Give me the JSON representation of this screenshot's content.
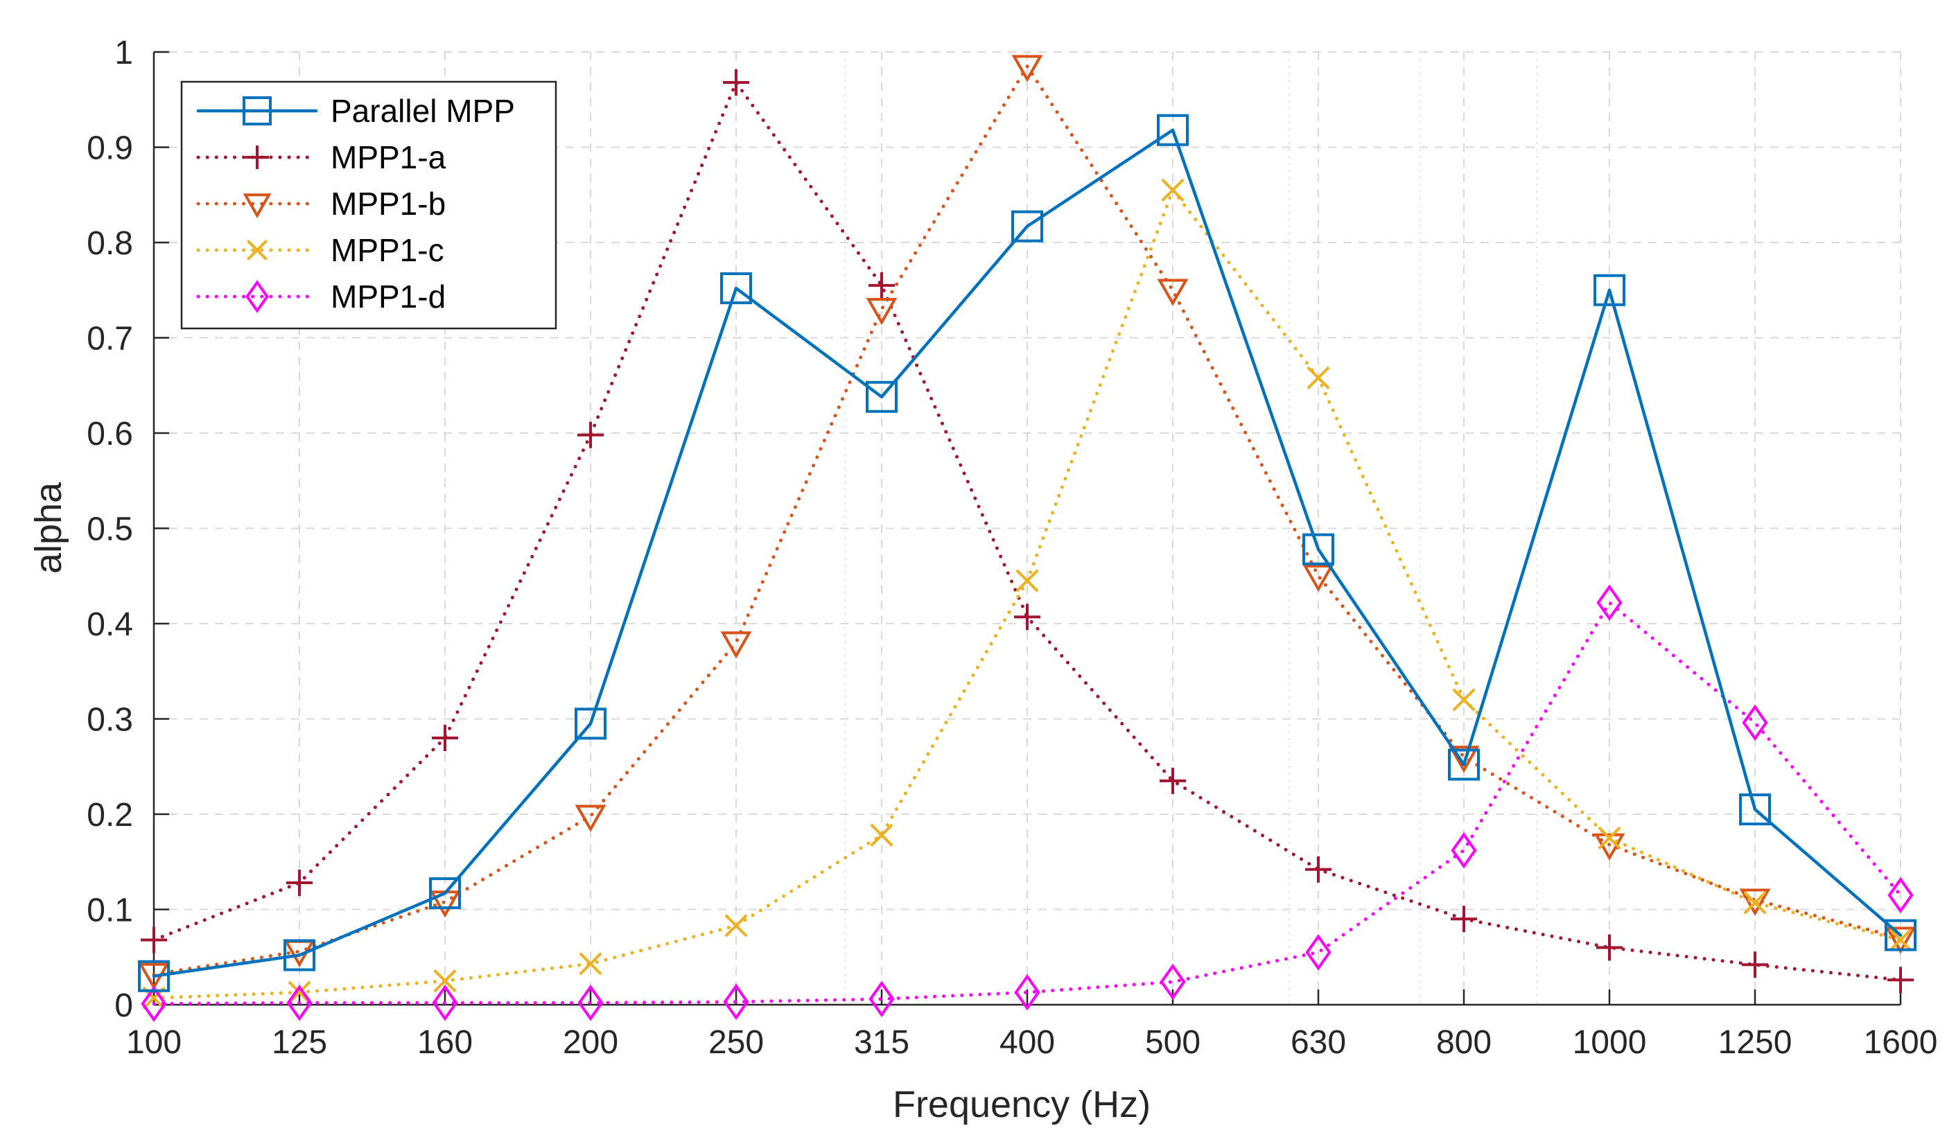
{
  "chart_data": {
    "type": "line",
    "title": "",
    "xlabel": "Frequency (Hz)",
    "ylabel": "alpha",
    "categories": [
      "100",
      "125",
      "160",
      "200",
      "250",
      "315",
      "400",
      "500",
      "630",
      "800",
      "1000",
      "1250",
      "1600"
    ],
    "yticks": [
      "0",
      "0.1",
      "0.2",
      "0.3",
      "0.4",
      "0.5",
      "0.6",
      "0.7",
      "0.8",
      "0.9",
      "1"
    ],
    "ylim": [
      0,
      1
    ],
    "grid": true,
    "legend_position": "top-left",
    "series": [
      {
        "name": "Parallel MPP",
        "color": "#0072BD",
        "marker": "square",
        "line": "solid",
        "values": [
          0.03,
          0.052,
          0.117,
          0.295,
          0.752,
          0.638,
          0.817,
          0.918,
          0.478,
          0.252,
          0.75,
          0.205,
          0.073
        ]
      },
      {
        "name": "MPP1-a",
        "color": "#A2142F",
        "marker": "plus",
        "line": "dotted",
        "values": [
          0.068,
          0.128,
          0.28,
          0.598,
          0.968,
          0.755,
          0.407,
          0.235,
          0.142,
          0.09,
          0.06,
          0.042,
          0.026
        ]
      },
      {
        "name": "MPP1-b",
        "color": "#D95319",
        "marker": "triangle-down",
        "line": "dotted",
        "values": [
          0.032,
          0.056,
          0.108,
          0.198,
          0.38,
          0.73,
          0.985,
          0.75,
          0.45,
          0.26,
          0.168,
          0.11,
          0.07
        ]
      },
      {
        "name": "MPP1-c",
        "color": "#EDB120",
        "marker": "x",
        "line": "dotted",
        "values": [
          0.007,
          0.013,
          0.025,
          0.043,
          0.083,
          0.178,
          0.445,
          0.855,
          0.658,
          0.32,
          0.175,
          0.107,
          0.068
        ]
      },
      {
        "name": "MPP1-d",
        "color": "#FF00FF",
        "marker": "diamond",
        "line": "dotted",
        "values": [
          0.001,
          0.002,
          0.002,
          0.002,
          0.003,
          0.006,
          0.013,
          0.024,
          0.055,
          0.162,
          0.422,
          0.296,
          0.115
        ]
      }
    ]
  }
}
